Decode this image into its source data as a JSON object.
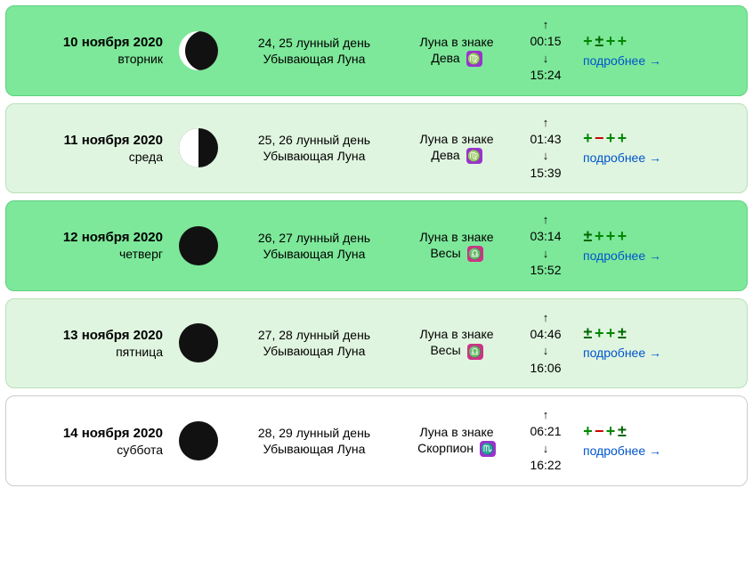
{
  "common": {
    "sign_label": "Луна в знаке",
    "lunar_phase": "Убывающая Луна",
    "more_link": "подробнее →",
    "up_arrow": "↑",
    "down_arrow": "↓"
  },
  "rows": [
    {
      "date": "10 ноября 2020",
      "weekday": "вторник",
      "bg_color": "#7de89a",
      "border_color": "#5dd080",
      "moon_style": "waning-gibbous",
      "lunar_day": "24, 25 лунный день",
      "sign_name": "Дева",
      "zodiac_glyph": "♍",
      "zodiac_bg": "#9933cc",
      "rise_time": "00:15",
      "set_time": "15:24",
      "rating": [
        {
          "char": "+",
          "cls": "plus"
        },
        {
          "char": "±",
          "cls": "pm"
        },
        {
          "char": "+",
          "cls": "plus"
        },
        {
          "char": "+",
          "cls": "plus"
        }
      ]
    },
    {
      "date": "11 ноября 2020",
      "weekday": "среда",
      "bg_color": "#e0f5e0",
      "border_color": "#b8e0b8",
      "moon_style": "last-quarter",
      "lunar_day": "25, 26 лунный день",
      "sign_name": "Дева",
      "zodiac_glyph": "♍",
      "zodiac_bg": "#9933cc",
      "rise_time": "01:43",
      "set_time": "15:39",
      "rating": [
        {
          "char": "+",
          "cls": "plus"
        },
        {
          "char": "−",
          "cls": "minus"
        },
        {
          "char": "+",
          "cls": "plus"
        },
        {
          "char": "+",
          "cls": "plus"
        }
      ]
    },
    {
      "date": "12 ноября 2020",
      "weekday": "четверг",
      "bg_color": "#7de89a",
      "border_color": "#5dd080",
      "moon_style": "waning-crescent-1",
      "lunar_day": "26, 27 лунный день",
      "sign_name": "Весы",
      "zodiac_glyph": "♎",
      "zodiac_bg": "#cc3388",
      "rise_time": "03:14",
      "set_time": "15:52",
      "rating": [
        {
          "char": "±",
          "cls": "pm"
        },
        {
          "char": "+",
          "cls": "plus"
        },
        {
          "char": "+",
          "cls": "plus"
        },
        {
          "char": "+",
          "cls": "plus"
        }
      ]
    },
    {
      "date": "13 ноября 2020",
      "weekday": "пятница",
      "bg_color": "#e0f5e0",
      "border_color": "#b8e0b8",
      "moon_style": "waning-crescent-2",
      "lunar_day": "27, 28 лунный день",
      "sign_name": "Весы",
      "zodiac_glyph": "♎",
      "zodiac_bg": "#cc3388",
      "rise_time": "04:46",
      "set_time": "16:06",
      "rating": [
        {
          "char": "±",
          "cls": "pm"
        },
        {
          "char": "+",
          "cls": "plus"
        },
        {
          "char": "+",
          "cls": "plus"
        },
        {
          "char": "±",
          "cls": "pm"
        }
      ]
    },
    {
      "date": "14 ноября 2020",
      "weekday": "суббота",
      "bg_color": "#ffffff",
      "border_color": "#cccccc",
      "moon_style": "new",
      "lunar_day": "28, 29 лунный день",
      "sign_name": "Скорпион",
      "zodiac_glyph": "♏",
      "zodiac_bg": "#9933cc",
      "rise_time": "06:21",
      "set_time": "16:22",
      "rating": [
        {
          "char": "+",
          "cls": "plus"
        },
        {
          "char": "−",
          "cls": "minus"
        },
        {
          "char": "+",
          "cls": "plus"
        },
        {
          "char": "±",
          "cls": "pm"
        }
      ]
    }
  ]
}
